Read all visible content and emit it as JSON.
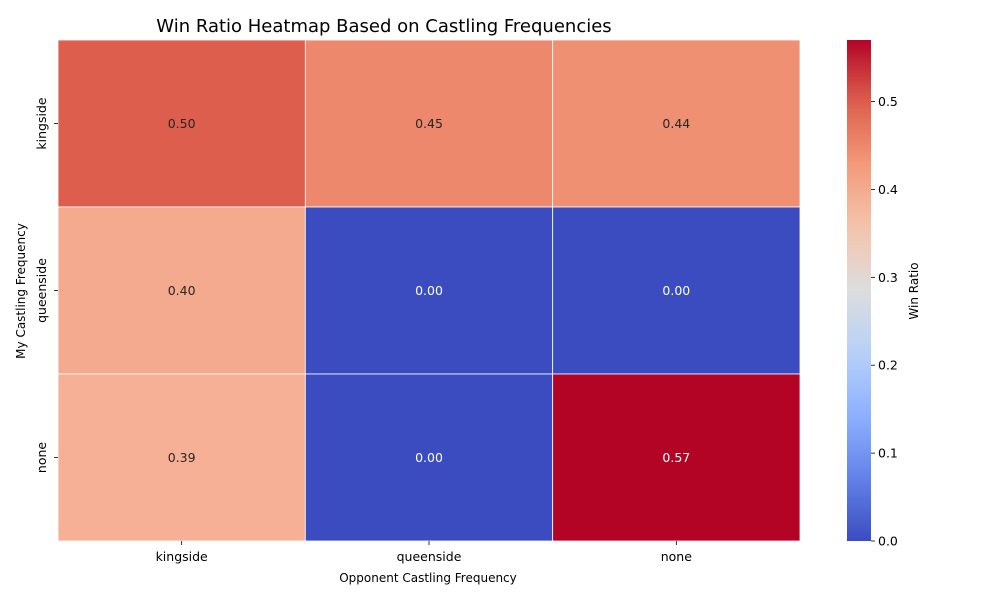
{
  "chart_data": {
    "type": "heatmap",
    "title": "Win Ratio Heatmap Based on Castling Frequencies",
    "xlabel": "Opponent Castling Frequency",
    "ylabel": "My Castling Frequency",
    "x_categories": [
      "kingside",
      "queenside",
      "none"
    ],
    "y_categories": [
      "kingside",
      "queenside",
      "none"
    ],
    "values": [
      [
        0.5,
        0.45,
        0.44
      ],
      [
        0.4,
        0.0,
        0.0
      ],
      [
        0.39,
        0.0,
        0.57
      ]
    ],
    "value_labels": [
      [
        "0.50",
        "0.45",
        "0.44"
      ],
      [
        "0.40",
        "0.00",
        "0.00"
      ],
      [
        "0.39",
        "0.00",
        "0.57"
      ]
    ],
    "colormap": "coolwarm",
    "vmin": 0.0,
    "vmax": 0.57,
    "colorbar": {
      "label": "Win Ratio",
      "ticks": [
        0.0,
        0.1,
        0.2,
        0.3,
        0.4,
        0.5
      ],
      "tick_labels": [
        "0.0",
        "0.1",
        "0.2",
        "0.3",
        "0.4",
        "0.5"
      ]
    },
    "grid": false,
    "cell_border_color": "#ffffff"
  }
}
